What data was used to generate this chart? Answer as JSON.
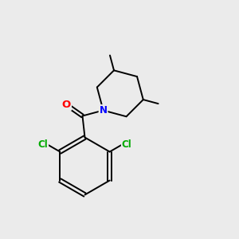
{
  "background_color": "#ebebeb",
  "bond_color": "#000000",
  "atom_colors": {
    "O": "#ff0000",
    "N": "#0000ff",
    "Cl": "#00aa00",
    "C": "#000000"
  },
  "line_width": 1.4,
  "font_size": 8.5,
  "fig_width": 3.0,
  "fig_height": 3.0,
  "dpi": 100
}
